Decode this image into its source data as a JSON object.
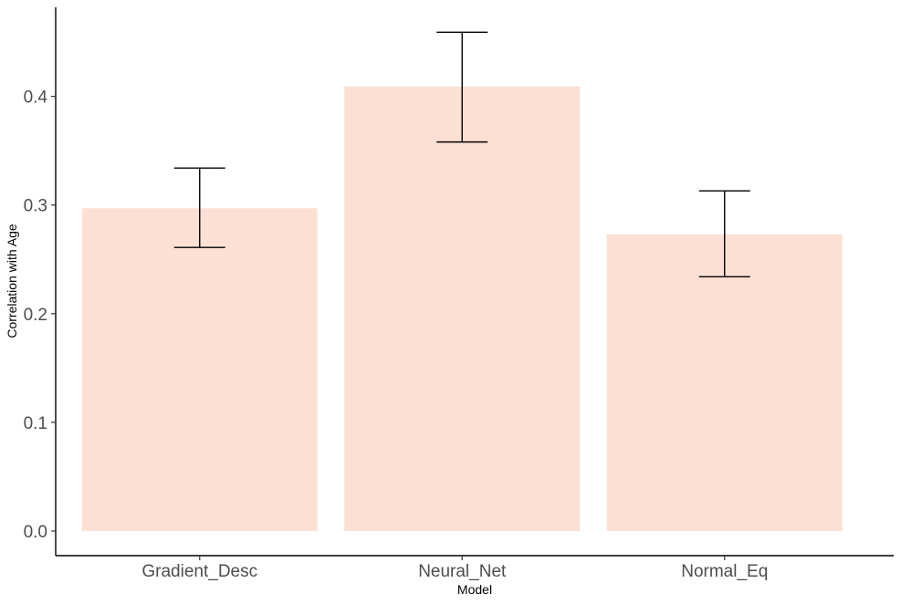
{
  "chart_data": {
    "type": "bar",
    "categories": [
      "Gradient_Desc",
      "Neural_Net",
      "Normal_Eq"
    ],
    "values": [
      0.297,
      0.409,
      0.273
    ],
    "error_lower": [
      0.261,
      0.358,
      0.234
    ],
    "error_upper": [
      0.334,
      0.459,
      0.313
    ],
    "xlabel": "Model",
    "ylabel": "Correlation with Age",
    "ylim": [
      0.0,
      0.47
    ],
    "yticks": [
      0.0,
      0.1,
      0.2,
      0.3,
      0.4
    ],
    "ytick_labels": [
      "0.0",
      "0.1",
      "0.2",
      "0.3",
      "0.4"
    ],
    "grid": false,
    "legend": "none",
    "bar_color": "#fce0d4",
    "errorbar_color": "#000000"
  }
}
